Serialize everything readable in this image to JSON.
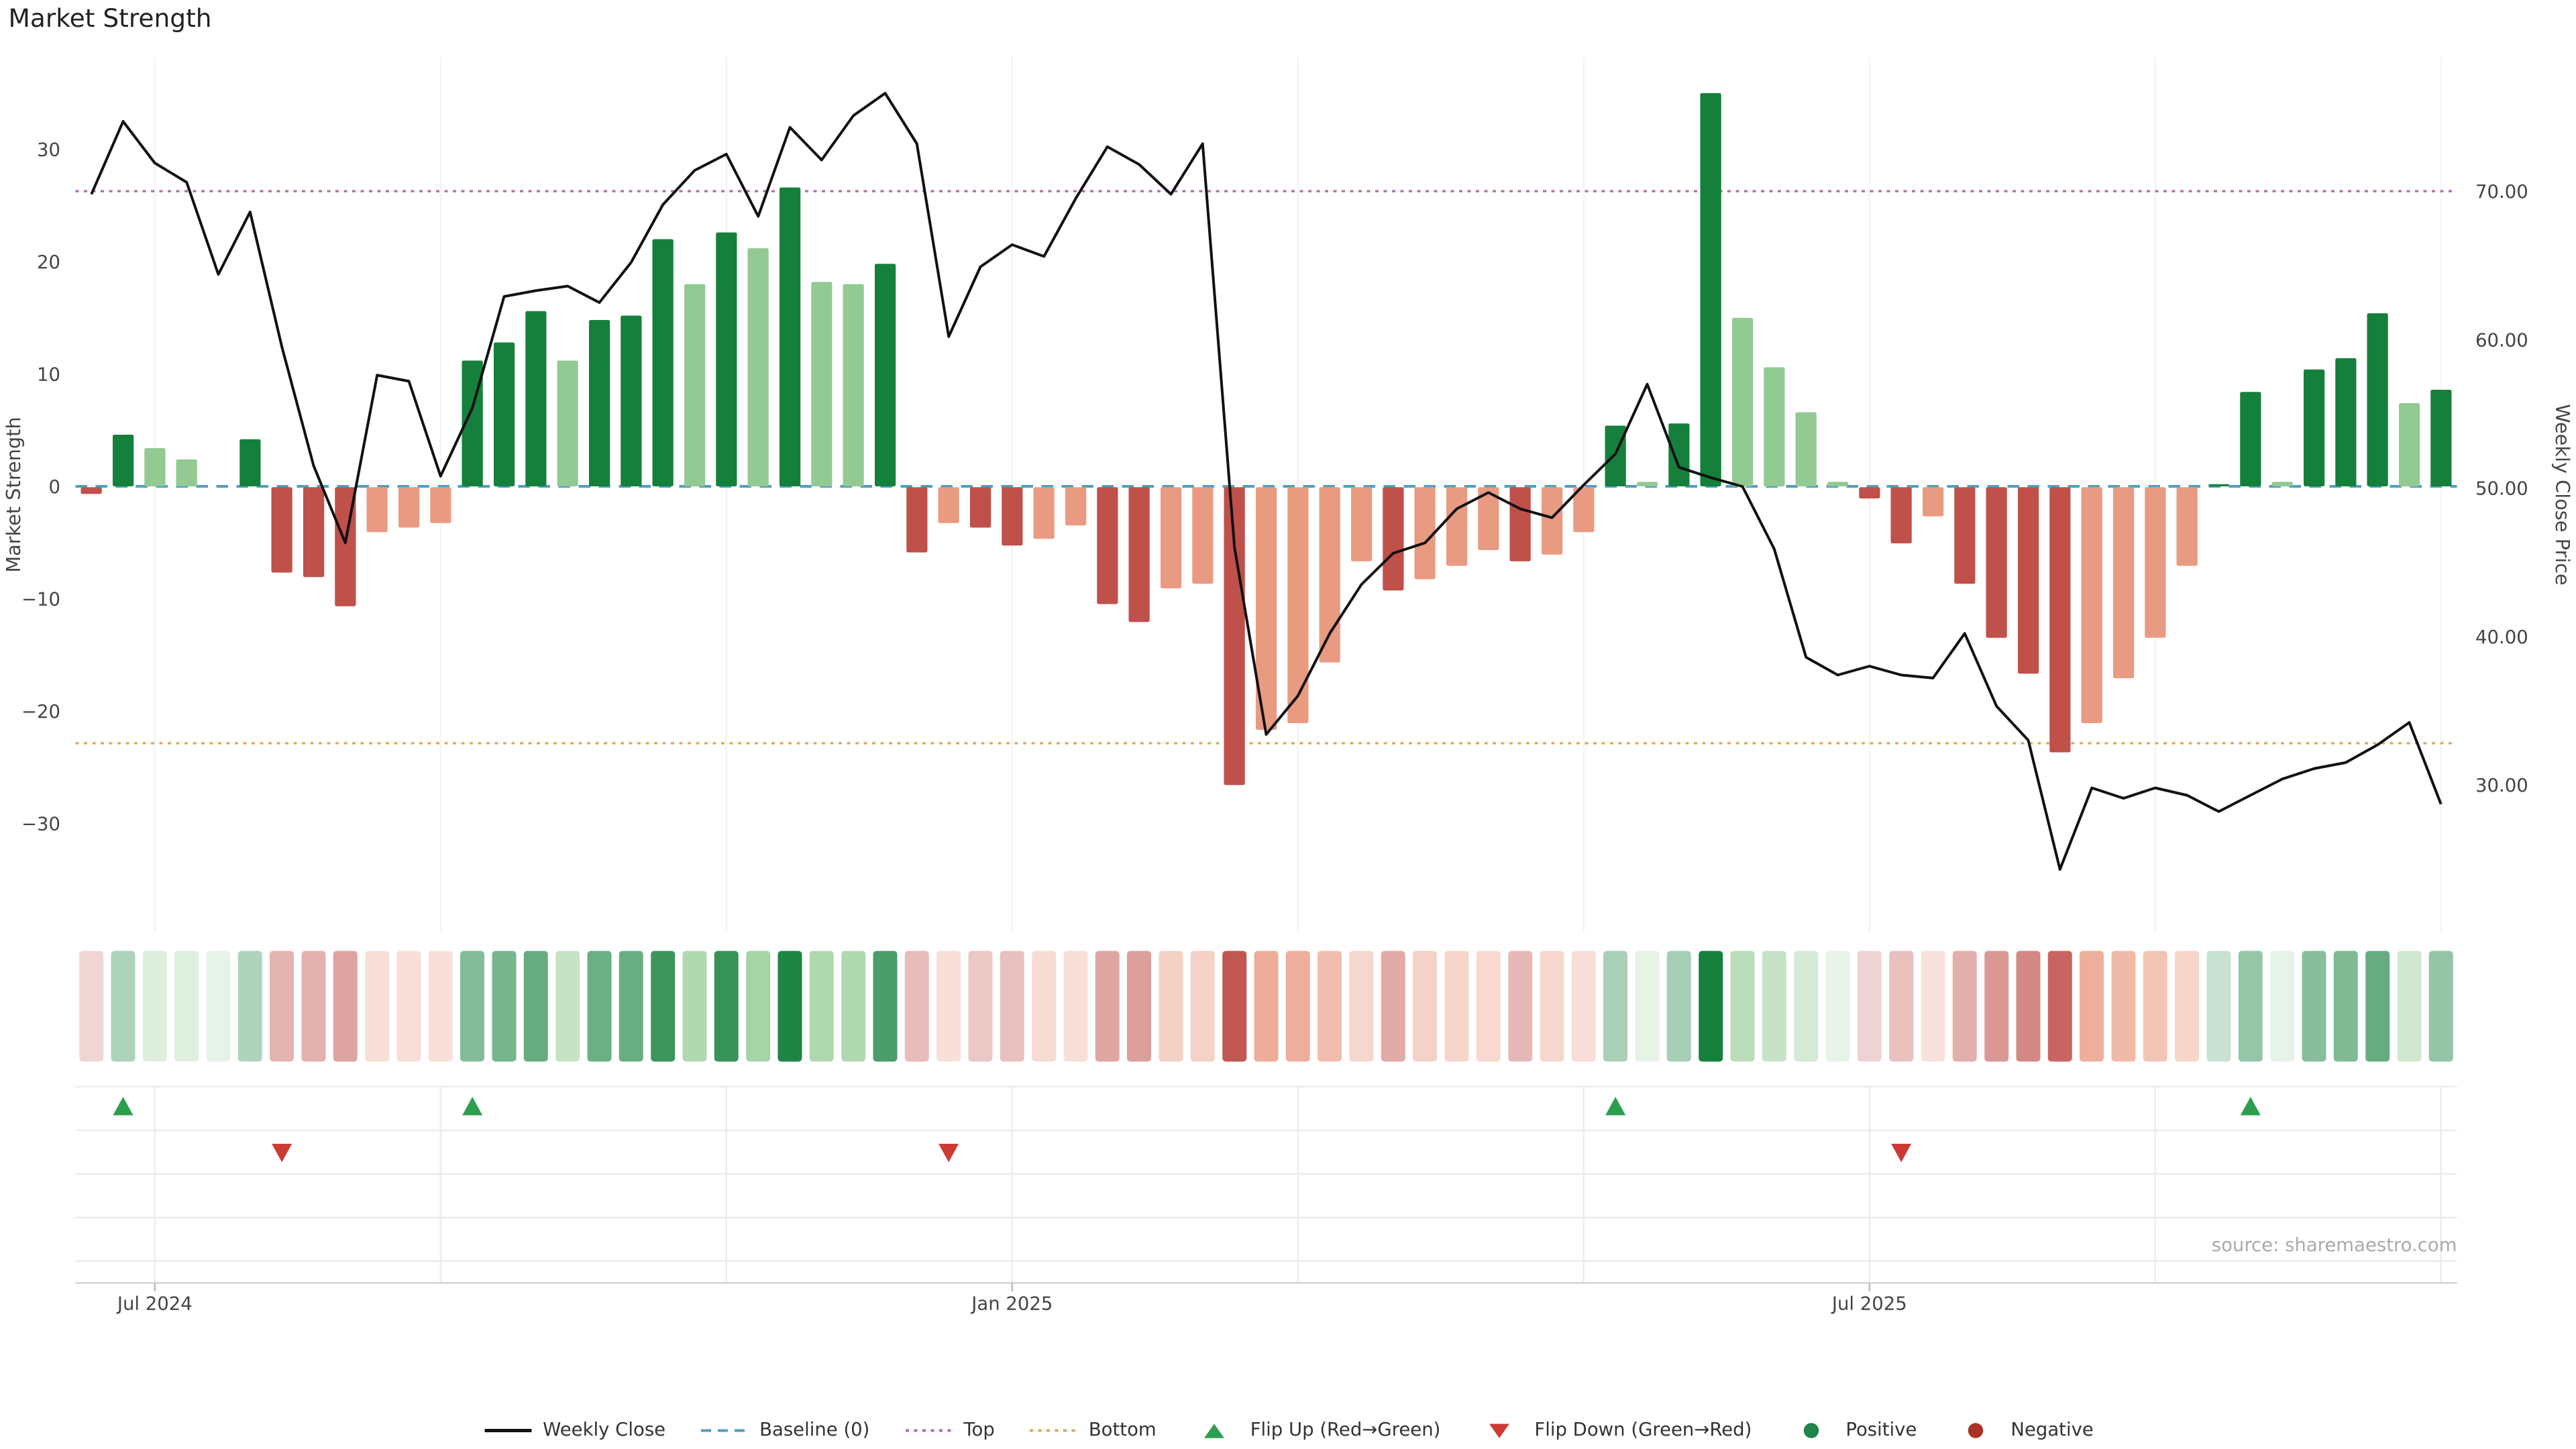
{
  "title": "Market Strength",
  "source": "source: sharemaestro.com",
  "axes": {
    "left_label": "Market Strength",
    "right_label": "Weekly Close Price",
    "left_ticks": [
      {
        "v": 30,
        "label": "30"
      },
      {
        "v": 20,
        "label": "20"
      },
      {
        "v": 10,
        "label": "10"
      },
      {
        "v": 0,
        "label": "0"
      },
      {
        "v": -10,
        "label": "−10"
      },
      {
        "v": -20,
        "label": "−20"
      },
      {
        "v": -30,
        "label": "−30"
      }
    ],
    "right_ticks": [
      {
        "v": 70,
        "label": "70.00"
      },
      {
        "v": 60,
        "label": "60.00"
      },
      {
        "v": 50,
        "label": "50.00"
      },
      {
        "v": 40,
        "label": "40.00"
      },
      {
        "v": 30,
        "label": "30.00"
      }
    ],
    "x_ticks": [
      {
        "week": 2,
        "label": "Jul 2024"
      },
      {
        "week": 29,
        "label": "Jan 2025"
      },
      {
        "week": 56,
        "label": "Jul 2025"
      }
    ]
  },
  "chart_data": {
    "type": "bar+line",
    "title": "Market Strength",
    "weeks": 75,
    "baseline": 0,
    "top_price": 70.0,
    "bottom_price": 32.8,
    "left_axis_range": [
      -38,
      38
    ],
    "right_axis_range": [
      22,
      79
    ],
    "grid_weeks": [
      2,
      11,
      20,
      29,
      38,
      47,
      56,
      65,
      74
    ],
    "flip_up_weeks": [
      1,
      12,
      48,
      68
    ],
    "flip_down_weeks": [
      6,
      27,
      57
    ],
    "bar_series": {
      "name": "Market Strength",
      "axis": "left",
      "values": [
        -0.6,
        4.6,
        3.4,
        2.4,
        0.0,
        4.2,
        -7.6,
        -8.0,
        -10.6,
        -4.0,
        -3.6,
        -3.2,
        11.2,
        12.8,
        15.6,
        11.2,
        14.8,
        15.2,
        22.0,
        18.0,
        22.6,
        21.2,
        26.6,
        18.2,
        18.0,
        19.8,
        -5.8,
        -3.2,
        -3.6,
        -5.2,
        -4.6,
        -3.4,
        -10.4,
        -12.0,
        -9.0,
        -8.6,
        -26.5,
        -21.6,
        -21.0,
        -15.6,
        -6.6,
        -9.2,
        -8.2,
        -7.0,
        -5.6,
        -6.6,
        -6.0,
        -4.0,
        5.4,
        0.4,
        5.6,
        35.0,
        15.0,
        10.6,
        6.6,
        0.4,
        -1.0,
        -5.0,
        -2.6,
        -8.6,
        -13.4,
        -16.6,
        -23.6,
        -21.0,
        -17.0,
        -13.4,
        -7.0,
        0.2,
        8.4,
        0.4,
        10.4,
        11.4,
        15.4,
        7.4,
        8.6
      ]
    },
    "line_series": {
      "name": "Weekly Close",
      "axis": "right",
      "values": [
        69.8,
        74.7,
        71.9,
        70.6,
        64.4,
        68.6,
        59.5,
        51.5,
        46.3,
        57.6,
        57.2,
        50.8,
        55.4,
        62.9,
        63.3,
        63.6,
        62.5,
        65.2,
        69.1,
        71.4,
        72.5,
        68.3,
        74.3,
        72.1,
        75.1,
        76.6,
        73.2,
        60.2,
        64.9,
        66.4,
        65.6,
        69.5,
        73.0,
        71.8,
        69.8,
        73.2,
        46.0,
        33.4,
        36.0,
        40.2,
        43.5,
        45.6,
        46.3,
        48.6,
        49.7,
        48.6,
        48.0,
        50.2,
        52.3,
        57.0,
        51.4,
        50.7,
        50.1,
        45.9,
        38.6,
        37.4,
        38.0,
        37.4,
        37.2,
        40.2,
        35.3,
        33.0,
        24.3,
        29.8,
        29.1,
        29.8,
        29.3,
        28.2,
        29.3,
        30.4,
        31.1,
        31.5,
        32.7,
        34.2,
        28.7
      ]
    }
  },
  "palette": {
    "pos_strong": "#15803c",
    "pos_light": "#93ca93",
    "neg_strong": "#c0504a",
    "neg_light": "#e99b82",
    "line": "#111111",
    "baseline": "#4f9ec4",
    "top": "#b569ad",
    "bottom": "#e5a54e",
    "flip_up": "#2d9e4e",
    "flip_down": "#cc3b33",
    "positive_dot": "#1e8449",
    "negative_dot": "#a93226",
    "grid": "#ececec",
    "grid_faint": "#f4f4f4",
    "axis_text": "#444444",
    "source_text": "#aaaaaa"
  },
  "legend": [
    {
      "id": "weekly-close",
      "label": "Weekly Close",
      "glyph": "solid-line",
      "color": "#111111"
    },
    {
      "id": "baseline",
      "label": "Baseline (0)",
      "glyph": "dashed-line",
      "color": "#4f9ec4"
    },
    {
      "id": "top",
      "label": "Top",
      "glyph": "dotted-line",
      "color": "#b569ad"
    },
    {
      "id": "bottom",
      "label": "Bottom",
      "glyph": "dotted-line",
      "color": "#e5a54e"
    },
    {
      "id": "flip-up",
      "label": "Flip Up (Red→Green)",
      "glyph": "triangle-up",
      "color": "#2d9e4e"
    },
    {
      "id": "flip-down",
      "label": "Flip Down (Green→Red)",
      "glyph": "triangle-down",
      "color": "#cc3b33"
    },
    {
      "id": "positive",
      "label": "Positive",
      "glyph": "dot",
      "color": "#1e8449"
    },
    {
      "id": "negative",
      "label": "Negative",
      "glyph": "dot",
      "color": "#a93226"
    }
  ]
}
